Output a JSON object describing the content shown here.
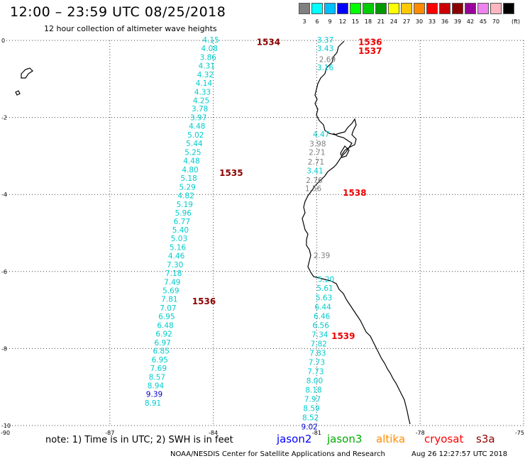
{
  "header": {
    "title": "12:00 – 23:59 UTC 08/25/2018",
    "subtitle": "12 hour collection of altimeter wave heights"
  },
  "legend": {
    "unit": "(ft)",
    "bins": [
      {
        "color": "#808080",
        "label": "3"
      },
      {
        "color": "#00ffff",
        "label": "6"
      },
      {
        "color": "#00bfff",
        "label": "9"
      },
      {
        "color": "#0000ff",
        "label": "12"
      },
      {
        "color": "#00ff00",
        "label": "15"
      },
      {
        "color": "#00cd00",
        "label": "18"
      },
      {
        "color": "#009900",
        "label": "21"
      },
      {
        "color": "#ffff00",
        "label": "24"
      },
      {
        "color": "#ffc800",
        "label": "27"
      },
      {
        "color": "#ff8c00",
        "label": "30"
      },
      {
        "color": "#ff0000",
        "label": "33"
      },
      {
        "color": "#cd0000",
        "label": "36"
      },
      {
        "color": "#8b0000",
        "label": "39"
      },
      {
        "color": "#990099",
        "label": "42"
      },
      {
        "color": "#ee82ee",
        "label": "45"
      },
      {
        "color": "#ffb6c1",
        "label": "70"
      },
      {
        "color": "#000000",
        "label": ""
      }
    ]
  },
  "axes": {
    "x_ticks": [
      "-90",
      "-87",
      "-84",
      "-81",
      "-78",
      "-75"
    ],
    "y_ticks": [
      "0",
      "-2",
      "-4",
      "-6",
      "-8",
      "-10"
    ]
  },
  "colors": {
    "cyan": "#00cccc",
    "gray": "#808080",
    "blue": "#0000cc",
    "dark_red": "#8b0000",
    "red": "#ee0000"
  },
  "tracks": [
    {
      "name": "track-1",
      "points": [
        {
          "lon": -84.07,
          "lat": 0.0,
          "v": "4.15",
          "c": "cyan"
        },
        {
          "lon": -84.11,
          "lat": -0.22,
          "v": "4.08",
          "c": "cyan"
        },
        {
          "lon": -84.15,
          "lat": -0.45,
          "v": "3.86",
          "c": "cyan"
        },
        {
          "lon": -84.19,
          "lat": -0.67,
          "v": "4.31",
          "c": "cyan"
        },
        {
          "lon": -84.23,
          "lat": -0.9,
          "v": "4.32",
          "c": "cyan"
        },
        {
          "lon": -84.27,
          "lat": -1.12,
          "v": "4.14",
          "c": "cyan"
        },
        {
          "lon": -84.31,
          "lat": -1.35,
          "v": "4.33",
          "c": "cyan"
        },
        {
          "lon": -84.35,
          "lat": -1.57,
          "v": "4.25",
          "c": "cyan"
        },
        {
          "lon": -84.39,
          "lat": -1.79,
          "v": "3.78",
          "c": "cyan"
        },
        {
          "lon": -84.43,
          "lat": -2.02,
          "v": "3.97",
          "c": "cyan"
        },
        {
          "lon": -84.47,
          "lat": -2.24,
          "v": "4.48",
          "c": "cyan"
        },
        {
          "lon": -84.51,
          "lat": -2.47,
          "v": "5.02",
          "c": "cyan"
        },
        {
          "lon": -84.55,
          "lat": -2.69,
          "v": "5.44",
          "c": "cyan"
        },
        {
          "lon": -84.59,
          "lat": -2.92,
          "v": "5.25",
          "c": "cyan"
        },
        {
          "lon": -84.63,
          "lat": -3.14,
          "v": "4.48",
          "c": "cyan"
        },
        {
          "lon": -84.67,
          "lat": -3.37,
          "v": "4.80",
          "c": "cyan"
        },
        {
          "lon": -84.71,
          "lat": -3.59,
          "v": "5.18",
          "c": "cyan"
        },
        {
          "lon": -84.75,
          "lat": -3.82,
          "v": "5.29",
          "c": "cyan"
        },
        {
          "lon": -84.79,
          "lat": -4.04,
          "v": "4.82",
          "c": "cyan"
        },
        {
          "lon": -84.83,
          "lat": -4.27,
          "v": "5.19",
          "c": "cyan"
        },
        {
          "lon": -84.87,
          "lat": -4.49,
          "v": "5.96",
          "c": "cyan"
        },
        {
          "lon": -84.91,
          "lat": -4.71,
          "v": "6.77",
          "c": "cyan"
        },
        {
          "lon": -84.95,
          "lat": -4.94,
          "v": "5.40",
          "c": "cyan"
        },
        {
          "lon": -84.99,
          "lat": -5.16,
          "v": "5.03",
          "c": "cyan"
        },
        {
          "lon": -85.03,
          "lat": -5.39,
          "v": "5.16",
          "c": "cyan"
        },
        {
          "lon": -85.07,
          "lat": -5.61,
          "v": "4.46",
          "c": "cyan"
        },
        {
          "lon": -85.11,
          "lat": -5.84,
          "v": "7.30",
          "c": "cyan"
        },
        {
          "lon": -85.15,
          "lat": -6.06,
          "v": "7.18",
          "c": "cyan"
        },
        {
          "lon": -85.19,
          "lat": -6.29,
          "v": "7.49",
          "c": "cyan"
        },
        {
          "lon": -85.23,
          "lat": -6.51,
          "v": "5.69",
          "c": "cyan"
        },
        {
          "lon": -85.27,
          "lat": -6.73,
          "v": "7.81",
          "c": "cyan"
        },
        {
          "lon": -85.31,
          "lat": -6.96,
          "v": "7.07",
          "c": "cyan"
        },
        {
          "lon": -85.35,
          "lat": -7.18,
          "v": "6.95",
          "c": "cyan"
        },
        {
          "lon": -85.39,
          "lat": -7.41,
          "v": "6.48",
          "c": "cyan"
        },
        {
          "lon": -85.43,
          "lat": -7.63,
          "v": "6.92",
          "c": "cyan"
        },
        {
          "lon": -85.47,
          "lat": -7.86,
          "v": "6.97",
          "c": "cyan"
        },
        {
          "lon": -85.51,
          "lat": -8.08,
          "v": "6.85",
          "c": "cyan"
        },
        {
          "lon": -85.55,
          "lat": -8.31,
          "v": "6.95",
          "c": "cyan"
        },
        {
          "lon": -85.59,
          "lat": -8.53,
          "v": "7.69",
          "c": "cyan"
        },
        {
          "lon": -85.63,
          "lat": -8.76,
          "v": "8.57",
          "c": "cyan"
        },
        {
          "lon": -85.67,
          "lat": -8.98,
          "v": "8.94",
          "c": "cyan"
        },
        {
          "lon": -85.71,
          "lat": -9.2,
          "v": "9.39",
          "c": "blue"
        },
        {
          "lon": -85.75,
          "lat": -9.43,
          "v": "8.91",
          "c": "cyan"
        }
      ]
    },
    {
      "name": "track-2",
      "points": [
        {
          "lon": -80.75,
          "lat": 0.0,
          "v": "3.37",
          "c": "cyan"
        },
        {
          "lon": -80.75,
          "lat": -0.22,
          "v": "3.43",
          "c": "cyan"
        },
        {
          "lon": -80.69,
          "lat": -0.51,
          "v": "2.69",
          "c": "gray"
        },
        {
          "lon": -80.75,
          "lat": -0.72,
          "v": "3.16",
          "c": "cyan"
        }
      ]
    },
    {
      "name": "track-3",
      "points": [
        {
          "lon": -80.87,
          "lat": -2.45,
          "v": "4.47",
          "c": "cyan"
        },
        {
          "lon": -80.97,
          "lat": -2.7,
          "v": "3.98",
          "c": "gray"
        },
        {
          "lon": -80.99,
          "lat": -2.92,
          "v": "2.71",
          "c": "gray"
        },
        {
          "lon": -81.02,
          "lat": -3.17,
          "v": "2.71",
          "c": "gray"
        },
        {
          "lon": -81.05,
          "lat": -3.4,
          "v": "3.41",
          "c": "cyan"
        },
        {
          "lon": -81.07,
          "lat": -3.65,
          "v": "2.76",
          "c": "gray"
        },
        {
          "lon": -81.1,
          "lat": -3.86,
          "v": "1.56",
          "c": "gray"
        }
      ]
    },
    {
      "name": "track-4",
      "points": [
        {
          "lon": -80.85,
          "lat": -5.6,
          "v": "2.39",
          "c": "gray"
        }
      ]
    },
    {
      "name": "track-5",
      "points": [
        {
          "lon": -80.73,
          "lat": -6.22,
          "v": "5.20",
          "c": "cyan"
        },
        {
          "lon": -80.76,
          "lat": -6.45,
          "v": "5.61",
          "c": "cyan"
        },
        {
          "lon": -80.79,
          "lat": -6.69,
          "v": "5.63",
          "c": "cyan"
        },
        {
          "lon": -80.82,
          "lat": -6.93,
          "v": "6.44",
          "c": "cyan"
        },
        {
          "lon": -80.85,
          "lat": -7.17,
          "v": "6.46",
          "c": "cyan"
        },
        {
          "lon": -80.88,
          "lat": -7.41,
          "v": "6.56",
          "c": "cyan"
        },
        {
          "lon": -80.91,
          "lat": -7.65,
          "v": "7.34",
          "c": "cyan"
        },
        {
          "lon": -80.94,
          "lat": -7.89,
          "v": "7.82",
          "c": "cyan"
        },
        {
          "lon": -80.97,
          "lat": -8.13,
          "v": "7.83",
          "c": "cyan"
        },
        {
          "lon": -81.0,
          "lat": -8.37,
          "v": "7.73",
          "c": "cyan"
        },
        {
          "lon": -81.03,
          "lat": -8.61,
          "v": "7.73",
          "c": "cyan"
        },
        {
          "lon": -81.06,
          "lat": -8.85,
          "v": "8.00",
          "c": "cyan"
        },
        {
          "lon": -81.09,
          "lat": -9.09,
          "v": "8.18",
          "c": "cyan"
        },
        {
          "lon": -81.12,
          "lat": -9.33,
          "v": "7.97",
          "c": "cyan"
        },
        {
          "lon": -81.15,
          "lat": -9.57,
          "v": "8.59",
          "c": "cyan"
        },
        {
          "lon": -81.18,
          "lat": -9.81,
          "v": "8.52",
          "c": "cyan"
        },
        {
          "lon": -81.21,
          "lat": -10.05,
          "v": "9.02",
          "c": "blue"
        }
      ]
    }
  ],
  "time_labels": [
    {
      "text": "1534",
      "lon": -82.4,
      "lat": -0.05,
      "c": "dark_red"
    },
    {
      "text": "1536",
      "lon": -79.45,
      "lat": -0.05,
      "c": "red"
    },
    {
      "text": "1537",
      "lon": -79.45,
      "lat": -0.28,
      "c": "red"
    },
    {
      "text": "1535",
      "lon": -83.48,
      "lat": -3.44,
      "c": "dark_red"
    },
    {
      "text": "1538",
      "lon": -79.9,
      "lat": -3.96,
      "c": "red"
    },
    {
      "text": "1536",
      "lon": -84.27,
      "lat": -6.78,
      "c": "dark_red"
    },
    {
      "text": "1539",
      "lon": -80.23,
      "lat": -7.68,
      "c": "red"
    }
  ],
  "footer": {
    "note": "note: 1) Time is in UTC; 2) SWH is in feet",
    "satellites": [
      {
        "label": "jason2",
        "color": "#0000ff"
      },
      {
        "label": "jason3",
        "color": "#00aa00"
      },
      {
        "label": "altika",
        "color": "#ff8c00"
      },
      {
        "label": "cryosat",
        "color": "#ff0000"
      },
      {
        "label": "s3a",
        "color": "#8b0000"
      }
    ],
    "credit": "NOAA/NESDIS Center for Satellite Applications and Research",
    "timestamp": "Aug 26 12:27:57 UTC 2018"
  }
}
